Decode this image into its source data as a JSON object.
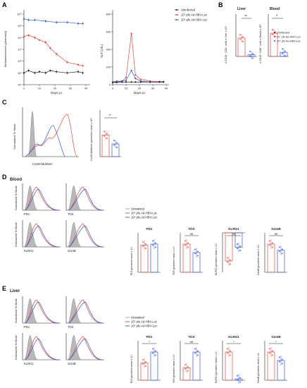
{
  "panels": {
    "A": "A",
    "B": "B",
    "C": "C",
    "D": "D",
    "E": "E"
  },
  "colors": {
    "uninfected": "#222222",
    "low": "#e0453a",
    "high": "#2f55d4",
    "unstained": "#9a9a9a"
  },
  "legend": {
    "uninfected": "Uninfected",
    "unstained": "Unstained",
    "low": "10⁷ pfu Ad-HBV-Luc",
    "high": "10⁹ pfu Ad-HBV-Luc"
  },
  "panel_A": {
    "left_ylabel": "Bioluminescence (photons/s)",
    "right_ylabel": "ALT (U/L)",
    "xlabel": "Days p.i.",
    "xticks": [
      "0",
      "10",
      "20",
      "30",
      "40"
    ],
    "left_yticks": [
      "10⁴",
      "10⁵",
      "10⁶",
      "10⁷",
      "10⁸",
      "10⁹",
      "10¹⁰"
    ],
    "right_yticks": [
      "0",
      "200",
      "400",
      "600",
      "800"
    ]
  },
  "panel_B": {
    "liver_title": "Liver",
    "blood_title": "Blood",
    "liver_ylabel": "# CD45⁺ CD8⁺ cells in liver x 10⁴",
    "blood_ylabel": "# CD45⁺ CD8⁺ cells in Blood x 10³",
    "liver_sig": "**",
    "blood_sig": "*"
  },
  "panel_C": {
    "xlabel": "Cor93-Multimer",
    "ylabel": "Normalized To Mode",
    "bar_ylabel": "Cor93-Multimer geometric mean x 10³",
    "sig": "*"
  },
  "panel_D": {
    "title": "Blood",
    "hist_ylabel": "Normalized To Mode",
    "markers": [
      "PD1",
      "TOX",
      "KLRG1",
      "GzmB"
    ],
    "bar_titles": [
      "PD1",
      "TOX",
      "KLRG1",
      "GzmB"
    ],
    "bar_ylabels": [
      "PD1 geometric mean x 10³",
      "TOX geometric mean x 10³",
      "KLRG1 geometric mean x 10³",
      "GzmB geometric mean x 10³"
    ],
    "sig": [
      "",
      "ns",
      "ns",
      "ns"
    ]
  },
  "panel_E": {
    "title": "Liver",
    "hist_ylabel": "Normalized To Mode",
    "markers": [
      "PD1",
      "TOX",
      "KLRG1",
      "GzmB"
    ],
    "bar_titles": [
      "PD1",
      "TOX",
      "KLRG1",
      "GzmB"
    ],
    "bar_ylabels": [
      "PD1 geometric mean x 10³",
      "TOX geometric mean x 10³",
      "KLRG1 geometric mean x 10³",
      "GzmB geometric mean x 10³"
    ],
    "sig": [
      "*",
      "ns",
      "*",
      "*"
    ]
  },
  "chart_data": [
    {
      "type": "line",
      "panel": "A-left",
      "xlabel": "Days p.i.",
      "ylabel": "Bioluminescence (photons/s)",
      "xlim": [
        0,
        40
      ],
      "ylim": [
        4,
        10
      ],
      "log_y": true,
      "series": [
        {
          "name": "10⁹ pfu Ad-HBV-Luc",
          "x": [
            0,
            3,
            7,
            14,
            21,
            28,
            35,
            38
          ],
          "y": [
            9.6,
            9.5,
            9.5,
            9.4,
            9.3,
            9.3,
            9.2,
            9.2
          ]
        },
        {
          "name": "10⁷ pfu Ad-HBV-Luc",
          "x": [
            0,
            3,
            7,
            10,
            14,
            17,
            21,
            28,
            35,
            38
          ],
          "y": [
            8.1,
            8.2,
            8.0,
            7.8,
            7.6,
            7.1,
            6.6,
            5.9,
            5.7,
            5.6
          ]
        },
        {
          "name": "Uninfected",
          "x": [
            0,
            3,
            7,
            10,
            14,
            17,
            21,
            28,
            35,
            38
          ],
          "y": [
            5.0,
            5.2,
            5.0,
            5.1,
            5.0,
            5.2,
            5.1,
            5.0,
            5.1,
            5.0
          ]
        }
      ]
    },
    {
      "type": "line",
      "panel": "A-right",
      "xlabel": "Days p.i.",
      "ylabel": "ALT (U/L)",
      "xlim": [
        0,
        40
      ],
      "ylim": [
        0,
        800
      ],
      "series": [
        {
          "name": "10⁷ pfu Ad-HBV-Luc",
          "x": [
            0,
            3,
            7,
            10,
            14,
            17,
            21,
            28,
            35,
            38
          ],
          "y": [
            30,
            40,
            40,
            80,
            580,
            110,
            60,
            40,
            35,
            35
          ]
        },
        {
          "name": "10⁹ pfu Ad-HBV-Luc",
          "x": [
            0,
            3,
            7,
            10,
            14,
            17,
            21,
            28,
            35,
            38
          ],
          "y": [
            30,
            30,
            40,
            50,
            160,
            70,
            40,
            30,
            30,
            30
          ]
        },
        {
          "name": "Uninfected",
          "x": [
            0,
            3,
            7,
            10,
            14,
            17,
            21,
            28,
            35,
            38
          ],
          "y": [
            25,
            25,
            30,
            30,
            30,
            30,
            30,
            30,
            30,
            30
          ]
        }
      ]
    },
    {
      "type": "bar",
      "panel": "B-liver",
      "title": "Liver",
      "ylim": [
        0,
        100
      ],
      "series": [
        {
          "name": "10⁷ pfu Ad-HBV-Luc",
          "values": [
            45
          ]
        },
        {
          "name": "10⁹ pfu Ad-HBV-Luc",
          "values": [
            4
          ]
        }
      ]
    },
    {
      "type": "bar",
      "panel": "B-blood",
      "title": "Blood",
      "ylim": [
        0,
        1.5
      ],
      "series": [
        {
          "name": "10⁷ pfu Ad-HBV-Luc",
          "values": [
            0.85
          ]
        },
        {
          "name": "10⁹ pfu Ad-HBV-Luc",
          "values": [
            0.15
          ]
        }
      ]
    },
    {
      "type": "bar",
      "panel": "C",
      "ylim": [
        0,
        25
      ],
      "series": [
        {
          "name": "10⁷ pfu Ad-HBV-Luc",
          "values": [
            12
          ]
        },
        {
          "name": "10⁹ pfu Ad-HBV-Luc",
          "values": [
            7
          ]
        }
      ]
    },
    {
      "type": "bar",
      "panel": "D",
      "categories": [
        "PD1",
        "TOX",
        "KLRG1",
        "GzmB"
      ],
      "series": [
        {
          "name": "10⁷ pfu Ad-HBV-Luc",
          "values": [
            2.6,
            3.0,
            -0.35,
            0.9
          ]
        },
        {
          "name": "10⁹ pfu Ad-HBV-Luc",
          "values": [
            2.7,
            2.1,
            -0.18,
            0.7
          ]
        }
      ]
    },
    {
      "type": "bar",
      "panel": "E",
      "categories": [
        "PD1",
        "TOX",
        "KLRG1",
        "GzmB"
      ],
      "series": [
        {
          "name": "10⁷ pfu Ad-HBV-Luc",
          "values": [
            6.5,
            0.35,
            0.82,
            3.0
          ]
        },
        {
          "name": "10⁹ pfu Ad-HBV-Luc",
          "values": [
            10.6,
            0.8,
            0.04,
            2.1
          ]
        }
      ]
    }
  ]
}
